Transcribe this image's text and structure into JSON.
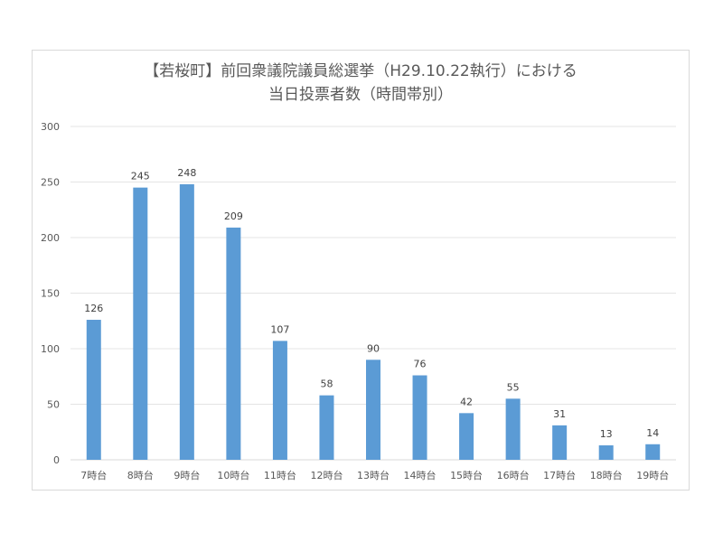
{
  "chart_data": {
    "type": "bar",
    "title_line1": "【若桜町】前回衆議院議員総選挙（H29.10.22執行）における",
    "title_line2": "当日投票者数（時間帯別）",
    "categories": [
      "7時台",
      "8時台",
      "9時台",
      "10時台",
      "11時台",
      "12時台",
      "13時台",
      "14時台",
      "15時台",
      "16時台",
      "17時台",
      "18時台",
      "19時台"
    ],
    "values": [
      126,
      245,
      248,
      209,
      107,
      58,
      90,
      76,
      42,
      55,
      31,
      13,
      14
    ],
    "ylim": [
      0,
      300
    ],
    "yticks": [
      "0",
      "50",
      "100",
      "150",
      "200",
      "250",
      "300"
    ],
    "grid": true,
    "legend": "none",
    "bar_color": "#5b9bd5"
  }
}
